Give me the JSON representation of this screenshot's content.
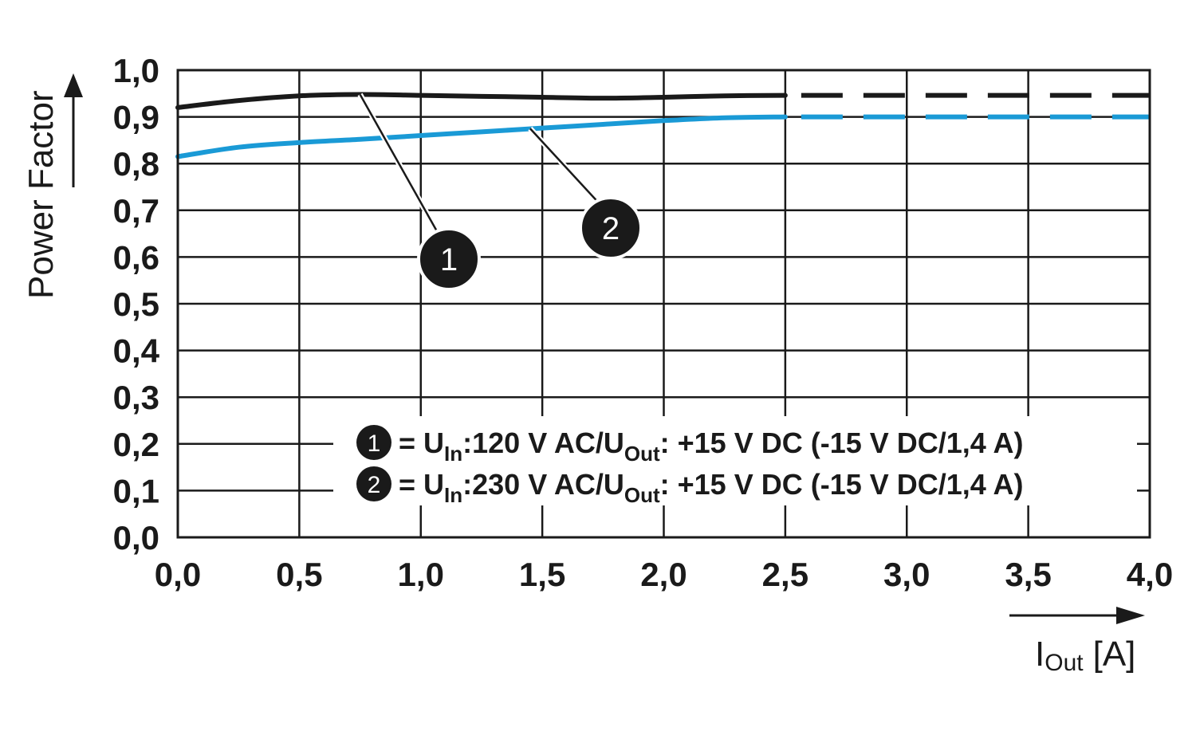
{
  "chart_data": {
    "type": "line",
    "ylabel": "Power Factor",
    "xlabel": {
      "main": "I",
      "sub": "Out",
      "unit": "[A]"
    },
    "xlim": [
      0,
      4
    ],
    "ylim": [
      0,
      1
    ],
    "grid": true,
    "x_ticks": [
      0,
      0.5,
      1,
      1.5,
      2,
      2.5,
      3,
      3.5,
      4
    ],
    "x_tick_labels": [
      "0,0",
      "0,5",
      "1,0",
      "1,5",
      "2,0",
      "2,5",
      "3,0",
      "3,5",
      "4,0"
    ],
    "y_ticks": [
      0,
      0.1,
      0.2,
      0.3,
      0.4,
      0.5,
      0.6,
      0.7,
      0.8,
      0.9,
      1.0
    ],
    "y_tick_labels": [
      "0,0",
      "0,1",
      "0,2",
      "0,3",
      "0,4",
      "0,5",
      "0,6",
      "0,7",
      "0,8",
      "0,9",
      "1,0"
    ],
    "series": [
      {
        "marker": "1",
        "color": "#1a1a1a",
        "legend": {
          "prefix": "= U",
          "sub1": "In",
          "mid": ":120 V AC/U",
          "sub2": "Out",
          "suffix": ": +15 V DC (-15 V DC/1,4 A)"
        },
        "x": [
          0.0,
          0.25,
          0.5,
          0.75,
          1.0,
          1.25,
          1.5,
          1.75,
          2.0,
          2.25,
          2.5
        ],
        "y": [
          0.92,
          0.935,
          0.945,
          0.948,
          0.946,
          0.944,
          0.942,
          0.94,
          0.942,
          0.945,
          0.946
        ],
        "dashed_x": [
          2.5,
          4.0
        ],
        "dashed_y": [
          0.946,
          0.946
        ],
        "callout_at": [
          0.75,
          0.948
        ]
      },
      {
        "marker": "2",
        "color": "#1a9ad6",
        "legend": {
          "prefix": "= U",
          "sub1": "In",
          "mid": ":230 V AC/U",
          "sub2": "Out",
          "suffix": ": +15 V DC (-15 V DC/1,4 A)"
        },
        "x": [
          0.0,
          0.25,
          0.5,
          0.75,
          1.0,
          1.25,
          1.5,
          1.75,
          2.0,
          2.25,
          2.5
        ],
        "y": [
          0.815,
          0.835,
          0.845,
          0.852,
          0.86,
          0.868,
          0.876,
          0.884,
          0.892,
          0.898,
          0.9
        ],
        "dashed_x": [
          2.5,
          4.0
        ],
        "dashed_y": [
          0.9,
          0.9
        ],
        "callout_at": [
          1.45,
          0.875
        ]
      }
    ]
  }
}
